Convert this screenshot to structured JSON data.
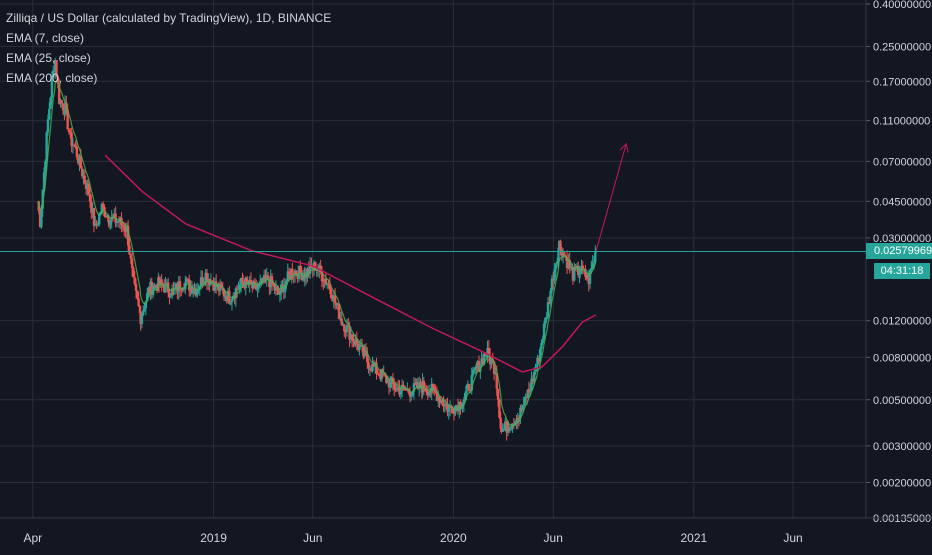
{
  "header": {
    "title": "Zilliqa / US Dollar (calculated by TradingView), 1D, BINANCE",
    "indicators": [
      "EMA (7, close)",
      "EMA (25, close)",
      "EMA (200, close)"
    ]
  },
  "chart_data": {
    "type": "candlestick",
    "title": "Zilliqa / US Dollar (calculated by TradingView), 1D, BINANCE",
    "scale": "log",
    "grid": true,
    "x_ticks": [
      "Apr",
      "2019",
      "Jun",
      "2020",
      "Jun",
      "2021",
      "Jun"
    ],
    "x_tick_dates": [
      "2018-04-01",
      "2019-01-01",
      "2019-06-01",
      "2020-01-01",
      "2020-06-01",
      "2021-01-01",
      "2021-06-01"
    ],
    "x_range": [
      "2018-02-10",
      "2021-09-20"
    ],
    "y_ticks": [
      0.4,
      0.25,
      0.17,
      0.11,
      0.07,
      0.045,
      0.03,
      0.012,
      0.008,
      0.005,
      0.003,
      0.002,
      0.00135
    ],
    "y_tick_labels": [
      "0.40000000",
      "0.25000000",
      "0.17000000",
      "0.11000000",
      "0.07000000",
      "0.04500000",
      "0.03000000",
      "0.01200000",
      "0.00800000",
      "0.00500000",
      "0.00300000",
      "0.00200000",
      "0.00135000"
    ],
    "y_range": [
      0.00135,
      0.4
    ],
    "last_price": 0.02579969,
    "last_price_label": "0.02579969",
    "countdown_label": "04:31:18",
    "price_series": [
      {
        "date": "2018-04-08",
        "value": 0.045
      },
      {
        "date": "2018-04-12",
        "value": 0.036
      },
      {
        "date": "2018-04-18",
        "value": 0.062
      },
      {
        "date": "2018-04-24",
        "value": 0.11
      },
      {
        "date": "2018-04-30",
        "value": 0.17
      },
      {
        "date": "2018-05-05",
        "value": 0.215
      },
      {
        "date": "2018-05-11",
        "value": 0.14
      },
      {
        "date": "2018-05-20",
        "value": 0.125
      },
      {
        "date": "2018-05-28",
        "value": 0.09
      },
      {
        "date": "2018-06-05",
        "value": 0.08
      },
      {
        "date": "2018-06-15",
        "value": 0.062
      },
      {
        "date": "2018-06-25",
        "value": 0.05
      },
      {
        "date": "2018-07-05",
        "value": 0.033
      },
      {
        "date": "2018-07-15",
        "value": 0.042
      },
      {
        "date": "2018-07-28",
        "value": 0.037
      },
      {
        "date": "2018-08-10",
        "value": 0.036
      },
      {
        "date": "2018-08-22",
        "value": 0.033
      },
      {
        "date": "2018-09-01",
        "value": 0.018
      },
      {
        "date": "2018-09-12",
        "value": 0.0125
      },
      {
        "date": "2018-09-25",
        "value": 0.017
      },
      {
        "date": "2018-10-10",
        "value": 0.018
      },
      {
        "date": "2018-11-01",
        "value": 0.0165
      },
      {
        "date": "2018-11-15",
        "value": 0.0185
      },
      {
        "date": "2018-12-05",
        "value": 0.017
      },
      {
        "date": "2018-12-20",
        "value": 0.02
      },
      {
        "date": "2019-01-05",
        "value": 0.0175
      },
      {
        "date": "2019-01-25",
        "value": 0.0155
      },
      {
        "date": "2019-02-15",
        "value": 0.0185
      },
      {
        "date": "2019-03-05",
        "value": 0.017
      },
      {
        "date": "2019-03-25",
        "value": 0.019
      },
      {
        "date": "2019-04-10",
        "value": 0.016
      },
      {
        "date": "2019-05-01",
        "value": 0.021
      },
      {
        "date": "2019-05-20",
        "value": 0.02
      },
      {
        "date": "2019-06-05",
        "value": 0.022
      },
      {
        "date": "2019-06-25",
        "value": 0.018
      },
      {
        "date": "2019-07-15",
        "value": 0.012
      },
      {
        "date": "2019-08-05",
        "value": 0.0095
      },
      {
        "date": "2019-08-25",
        "value": 0.0075
      },
      {
        "date": "2019-09-15",
        "value": 0.0065
      },
      {
        "date": "2019-10-05",
        "value": 0.0057
      },
      {
        "date": "2019-10-25",
        "value": 0.0055
      },
      {
        "date": "2019-11-15",
        "value": 0.0058
      },
      {
        "date": "2019-12-05",
        "value": 0.0054
      },
      {
        "date": "2019-12-25",
        "value": 0.0045
      },
      {
        "date": "2020-01-15",
        "value": 0.0049
      },
      {
        "date": "2020-02-05",
        "value": 0.007
      },
      {
        "date": "2020-02-20",
        "value": 0.0085
      },
      {
        "date": "2020-03-05",
        "value": 0.007
      },
      {
        "date": "2020-03-14",
        "value": 0.0035
      },
      {
        "date": "2020-03-25",
        "value": 0.0038
      },
      {
        "date": "2020-04-10",
        "value": 0.0042
      },
      {
        "date": "2020-04-25",
        "value": 0.0055
      },
      {
        "date": "2020-05-08",
        "value": 0.0075
      },
      {
        "date": "2020-05-20",
        "value": 0.012
      },
      {
        "date": "2020-06-01",
        "value": 0.02
      },
      {
        "date": "2020-06-10",
        "value": 0.028
      },
      {
        "date": "2020-06-20",
        "value": 0.024
      },
      {
        "date": "2020-07-01",
        "value": 0.02
      },
      {
        "date": "2020-07-12",
        "value": 0.021
      },
      {
        "date": "2020-07-25",
        "value": 0.019
      },
      {
        "date": "2020-08-05",
        "value": 0.0258
      }
    ],
    "ema_200": [
      {
        "date": "2018-07-20",
        "value": 0.075
      },
      {
        "date": "2018-09-15",
        "value": 0.05
      },
      {
        "date": "2018-11-20",
        "value": 0.035
      },
      {
        "date": "2019-03-01",
        "value": 0.026
      },
      {
        "date": "2019-06-01",
        "value": 0.022
      },
      {
        "date": "2019-09-01",
        "value": 0.0155
      },
      {
        "date": "2019-12-01",
        "value": 0.011
      },
      {
        "date": "2020-02-15",
        "value": 0.0085
      },
      {
        "date": "2020-04-15",
        "value": 0.0068
      },
      {
        "date": "2020-05-15",
        "value": 0.0072
      },
      {
        "date": "2020-06-15",
        "value": 0.009
      },
      {
        "date": "2020-07-15",
        "value": 0.0118
      },
      {
        "date": "2020-08-05",
        "value": 0.0128
      }
    ],
    "projection": [
      {
        "date": "2020-08-05",
        "value": 0.0258
      },
      {
        "date": "2020-09-20",
        "value": 0.085
      }
    ],
    "colors": {
      "background": "#131722",
      "grid": "#2a2e39",
      "up": "#26a69a",
      "down": "#ef5350",
      "ema_7": "#4caf50",
      "ema_200": "#c2185b",
      "projection": "#c2185b",
      "axis_text": "#d1d4dc",
      "price_line": "#26a69a"
    }
  }
}
